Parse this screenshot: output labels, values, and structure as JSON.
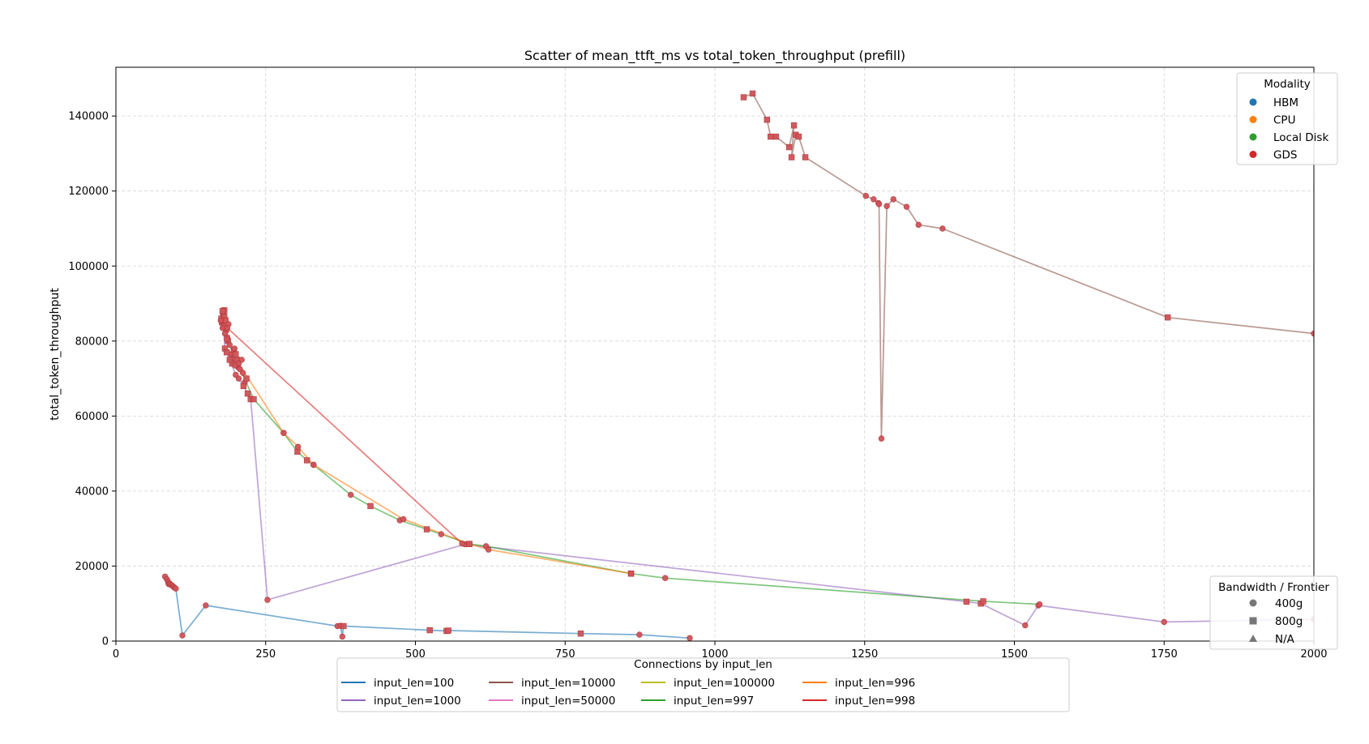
{
  "chart_data": {
    "type": "scatter",
    "title": "Scatter of mean_ttft_ms vs total_token_throughput (prefill)",
    "xlabel": "",
    "ylabel": "total_token_throughput",
    "xlim": [
      0,
      2000
    ],
    "ylim": [
      0,
      153000
    ],
    "x_ticks": [
      0,
      250,
      500,
      750,
      1000,
      1250,
      1500,
      1750,
      2000
    ],
    "y_ticks": [
      0,
      20000,
      40000,
      60000,
      80000,
      100000,
      120000,
      140000
    ],
    "grid": true,
    "marker_color": "#d0545a",
    "modality_legend": {
      "title": "Modality",
      "placement": "top-right",
      "items": [
        {
          "label": "HBM",
          "color": "#1f77b4"
        },
        {
          "label": "CPU",
          "color": "#ff7f0e"
        },
        {
          "label": "Local Disk",
          "color": "#2ca02c"
        },
        {
          "label": "GDS",
          "color": "#d62728"
        }
      ]
    },
    "bandwidth_legend": {
      "title": "Bandwidth / Frontier",
      "placement": "bottom-right",
      "items": [
        {
          "label": "400g",
          "marker": "circle"
        },
        {
          "label": "800g",
          "marker": "square"
        },
        {
          "label": "N/A",
          "marker": "triangle"
        }
      ]
    },
    "connections_legend": {
      "title": "Connections by input_len",
      "placement": "bottom-center",
      "items": [
        {
          "label": "input_len=100",
          "color": "#1f77b4"
        },
        {
          "label": "input_len=1000",
          "color": "#9467bd"
        },
        {
          "label": "input_len=10000",
          "color": "#8c564b"
        },
        {
          "label": "input_len=50000",
          "color": "#e377c2"
        },
        {
          "label": "input_len=100000",
          "color": "#bcbd22"
        },
        {
          "label": "input_len=997",
          "color": "#2ca02c"
        },
        {
          "label": "input_len=996",
          "color": "#ff7f0e"
        },
        {
          "label": "input_len=998",
          "color": "#d62728"
        }
      ]
    },
    "series": [
      {
        "name": "input_len=100",
        "color": "#1f77b4",
        "points": [
          [
            82,
            17200,
            "circle"
          ],
          [
            85,
            16500,
            "circle"
          ],
          [
            87,
            15800,
            "circle"
          ],
          [
            88,
            15200,
            "circle"
          ],
          [
            90,
            15300,
            "circle"
          ],
          [
            92,
            15000,
            "circle"
          ],
          [
            94,
            14800,
            "circle"
          ],
          [
            96,
            14500,
            "circle"
          ],
          [
            98,
            14200,
            "circle"
          ],
          [
            100,
            14000,
            "circle"
          ],
          [
            111,
            1500,
            "circle"
          ],
          [
            150,
            9500,
            "circle"
          ],
          [
            370,
            4000,
            "circle"
          ],
          [
            375,
            4100,
            "circle"
          ],
          [
            378,
            1200,
            "circle"
          ],
          [
            380,
            4000,
            "square"
          ],
          [
            524,
            2900,
            "square"
          ],
          [
            552,
            2700,
            "square"
          ],
          [
            555,
            2800,
            "square"
          ],
          [
            776,
            2000,
            "square"
          ],
          [
            874,
            1700,
            "circle"
          ],
          [
            958,
            800,
            "circle"
          ]
        ]
      },
      {
        "name": "input_len=1000",
        "color": "#9467bd",
        "points": [
          [
            178,
            88000,
            "square"
          ],
          [
            182,
            78000,
            "square"
          ],
          [
            185,
            77000,
            "square"
          ],
          [
            190,
            75000,
            "square"
          ],
          [
            200,
            71000,
            "circle"
          ],
          [
            205,
            70000,
            "circle"
          ],
          [
            213,
            68000,
            "square"
          ],
          [
            220,
            66000,
            "square"
          ],
          [
            225,
            64500,
            "square"
          ],
          [
            253,
            11000,
            "circle"
          ],
          [
            583,
            25800,
            "circle"
          ],
          [
            1420,
            10500,
            "square"
          ],
          [
            1444,
            10000,
            "square"
          ],
          [
            1518,
            4200,
            "circle"
          ],
          [
            1540,
            9500,
            "circle"
          ],
          [
            1750,
            5100,
            "circle"
          ],
          [
            2000,
            5800,
            "circle"
          ]
        ]
      },
      {
        "name": "input_len=997",
        "color": "#2ca02c",
        "points": [
          [
            185,
            80500,
            "circle"
          ],
          [
            230,
            64500,
            "square"
          ],
          [
            280,
            55500,
            "circle"
          ],
          [
            303,
            50500,
            "square"
          ],
          [
            319,
            48200,
            "square"
          ],
          [
            330,
            47000,
            "circle"
          ],
          [
            392,
            39000,
            "circle"
          ],
          [
            425,
            36000,
            "square"
          ],
          [
            474,
            32200,
            "circle"
          ],
          [
            519,
            29800,
            "square"
          ],
          [
            543,
            28500,
            "circle"
          ],
          [
            590,
            25900,
            "square"
          ],
          [
            618,
            25300,
            "circle"
          ],
          [
            860,
            18000,
            "square"
          ],
          [
            917,
            16800,
            "circle"
          ],
          [
            1448,
            10600,
            "square"
          ],
          [
            1542,
            9800,
            "circle"
          ]
        ]
      },
      {
        "name": "input_len=996",
        "color": "#ff7f0e",
        "points": [
          [
            198,
            78000,
            "circle"
          ],
          [
            205,
            74000,
            "circle"
          ],
          [
            280,
            55500,
            "circle"
          ],
          [
            304,
            51800,
            "circle"
          ],
          [
            330,
            47000,
            "circle"
          ],
          [
            480,
            32500,
            "circle"
          ],
          [
            590,
            25900,
            "square"
          ],
          [
            622,
            24400,
            "circle"
          ],
          [
            860,
            18000,
            "square"
          ]
        ]
      },
      {
        "name": "input_len=998",
        "color": "#d62728",
        "points": [
          [
            186,
            83500,
            "circle"
          ],
          [
            578,
            26000,
            "circle"
          ]
        ]
      },
      {
        "name": "input_len=10000",
        "color": "#8c564b",
        "points": [
          [
            1048,
            145000,
            "square"
          ],
          [
            1063,
            146000,
            "square"
          ],
          [
            1087,
            139000,
            "square"
          ],
          [
            1093,
            134500,
            "square"
          ],
          [
            1102,
            134500,
            "square"
          ],
          [
            1124,
            131700,
            "square"
          ],
          [
            1132,
            137500,
            "square"
          ],
          [
            1128,
            129000,
            "square"
          ],
          [
            1135,
            135000,
            "square"
          ],
          [
            1140,
            134500,
            "square"
          ],
          [
            1151,
            129000,
            "square"
          ],
          [
            1252,
            118700,
            "circle"
          ],
          [
            1265,
            117800,
            "circle"
          ],
          [
            1273,
            116800,
            "circle"
          ],
          [
            1274,
            116500,
            "circle"
          ],
          [
            1278,
            54000,
            "circle"
          ],
          [
            1287,
            116000,
            "circle"
          ],
          [
            1298,
            117800,
            "circle"
          ],
          [
            1320,
            115800,
            "circle"
          ],
          [
            1340,
            111000,
            "circle"
          ],
          [
            1380,
            110000,
            "circle"
          ],
          [
            1756,
            86300,
            "square"
          ],
          [
            2000,
            82000,
            "circle"
          ]
        ]
      }
    ],
    "bulk_points": [
      [
        176,
        86000,
        "square"
      ],
      [
        177,
        85000,
        "square"
      ],
      [
        179,
        87500,
        "square"
      ],
      [
        180,
        84000,
        "square"
      ],
      [
        181,
        86500,
        "square"
      ],
      [
        183,
        85500,
        "square"
      ],
      [
        184,
        83000,
        "square"
      ],
      [
        178,
        83500,
        "circle"
      ],
      [
        182,
        82000,
        "circle"
      ],
      [
        186,
        81000,
        "circle"
      ],
      [
        188,
        84500,
        "circle"
      ],
      [
        187,
        80000,
        "square"
      ],
      [
        192,
        76500,
        "circle"
      ],
      [
        195,
        75500,
        "circle"
      ],
      [
        197,
        77500,
        "square"
      ],
      [
        200,
        76500,
        "square"
      ],
      [
        202,
        75000,
        "square"
      ],
      [
        204,
        73000,
        "circle"
      ],
      [
        207,
        72500,
        "circle"
      ],
      [
        210,
        75000,
        "circle"
      ],
      [
        212,
        71500,
        "circle"
      ],
      [
        194,
        74000,
        "square"
      ],
      [
        199,
        73500,
        "circle"
      ],
      [
        215,
        69000,
        "circle"
      ],
      [
        218,
        70000,
        "square"
      ],
      [
        190,
        79000,
        "circle"
      ],
      [
        175,
        85500,
        "circle"
      ],
      [
        181,
        88200,
        "square"
      ]
    ]
  }
}
